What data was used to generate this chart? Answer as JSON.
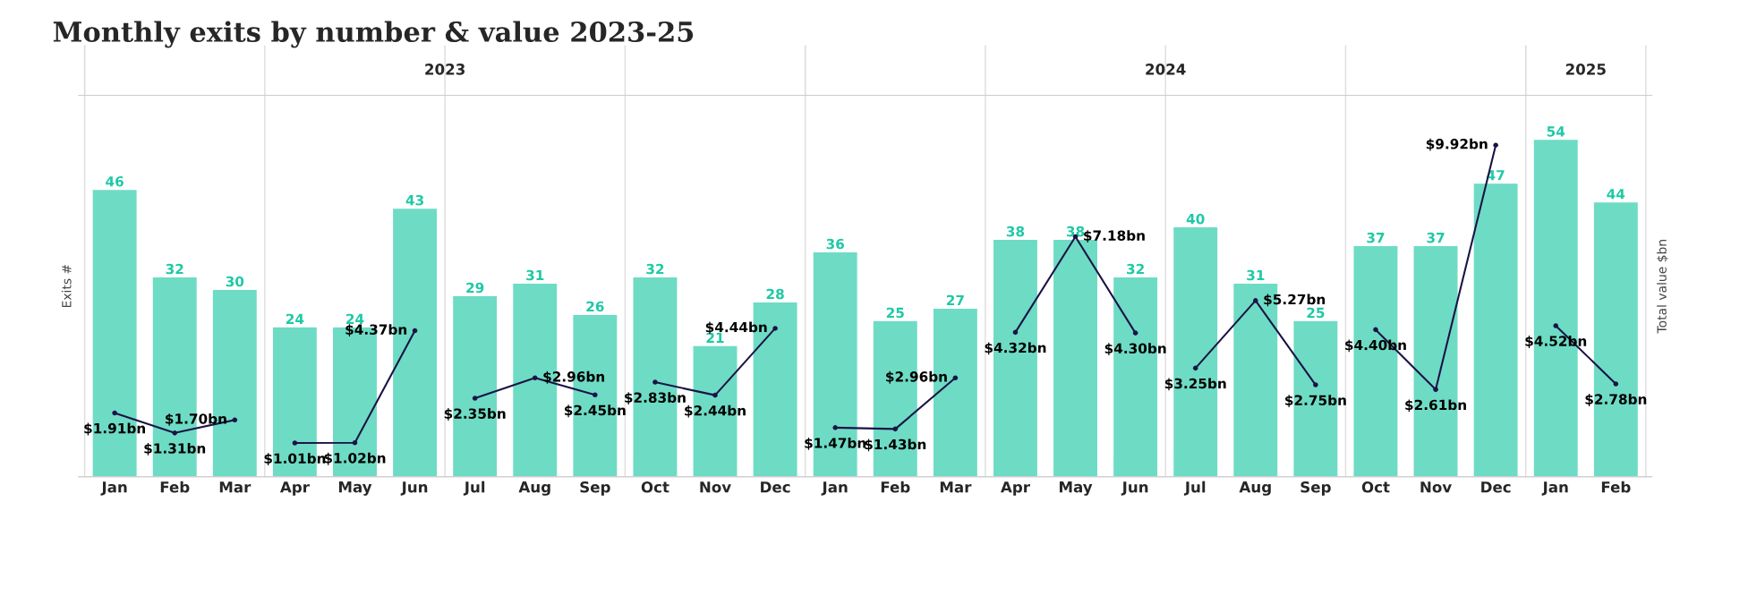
{
  "chart_data": {
    "type": "bar",
    "title": "Monthly exits by number & value 2023-25",
    "ylabel": "Exits #",
    "y2label": "Total value $bn",
    "annotations": [
      "2023",
      "2024",
      "2025"
    ],
    "categories": [
      "Jan",
      "Feb",
      "Mar",
      "Apr",
      "May",
      "Jun",
      "Jul",
      "Aug",
      "Sep",
      "Oct",
      "Nov",
      "Dec",
      "Jan",
      "Feb",
      "Mar",
      "Apr",
      "May",
      "Jun",
      "Jul",
      "Aug",
      "Sep",
      "Oct",
      "Nov",
      "Dec",
      "Jan",
      "Feb"
    ],
    "data_labels": true,
    "marker": "circle",
    "series": [
      {
        "color": "#6edbc5",
        "values": [
          46,
          32,
          30,
          24,
          24,
          43,
          29,
          31,
          26,
          32,
          21,
          28,
          36,
          25,
          27,
          38,
          38,
          32,
          40,
          31,
          25,
          37,
          37,
          47,
          54,
          44
        ]
      },
      {
        "type": "line",
        "axis": "y2",
        "color": "#1a1446",
        "values": [
          1.91,
          1.31,
          1.7,
          null,
          null,
          null,
          null,
          null,
          null,
          null,
          null,
          null,
          null,
          null,
          null,
          null,
          null,
          null,
          null,
          null,
          null,
          null,
          null,
          null,
          null,
          null
        ],
        "value_labels": [
          "$1.91bn",
          "$1.31bn",
          "$1.70bn",
          null,
          null,
          null,
          null,
          null,
          null,
          null,
          null,
          null,
          null,
          null,
          null,
          null,
          null,
          null,
          null,
          null,
          null,
          null,
          null,
          null,
          null,
          null
        ]
      },
      {
        "type": "line",
        "axis": "y2",
        "color": "#1a1446",
        "values": [
          null,
          null,
          null,
          1.01,
          1.02,
          4.37,
          null,
          null,
          null,
          null,
          null,
          null,
          null,
          null,
          null,
          null,
          null,
          null,
          null,
          null,
          null,
          null,
          null,
          null,
          null,
          null
        ],
        "value_labels": [
          null,
          null,
          null,
          "$1.01bn",
          "$1.02bn",
          "$4.37bn",
          null,
          null,
          null,
          null,
          null,
          null,
          null,
          null,
          null,
          null,
          null,
          null,
          null,
          null,
          null,
          null,
          null,
          null,
          null,
          null
        ]
      },
      {
        "type": "line",
        "axis": "y2",
        "color": "#1a1446",
        "values": [
          null,
          null,
          null,
          null,
          null,
          null,
          2.35,
          2.96,
          2.45,
          null,
          null,
          null,
          null,
          null,
          null,
          null,
          null,
          null,
          null,
          null,
          null,
          null,
          null,
          null,
          null,
          null
        ],
        "value_labels": [
          null,
          null,
          null,
          null,
          null,
          null,
          "$2.35bn",
          "$2.96bn",
          "$2.45bn",
          null,
          null,
          null,
          null,
          null,
          null,
          null,
          null,
          null,
          null,
          null,
          null,
          null,
          null,
          null,
          null,
          null
        ]
      },
      {
        "type": "line",
        "axis": "y2",
        "color": "#1a1446",
        "values": [
          null,
          null,
          null,
          null,
          null,
          null,
          null,
          null,
          null,
          2.83,
          2.44,
          4.44,
          null,
          null,
          null,
          null,
          null,
          null,
          null,
          null,
          null,
          null,
          null,
          null,
          null,
          null
        ],
        "value_labels": [
          null,
          null,
          null,
          null,
          null,
          null,
          null,
          null,
          null,
          "$2.83bn",
          "$2.44bn",
          "$4.44bn",
          null,
          null,
          null,
          null,
          null,
          null,
          null,
          null,
          null,
          null,
          null,
          null,
          null,
          null
        ]
      },
      {
        "type": "line",
        "axis": "y2",
        "color": "#1a1446",
        "values": [
          null,
          null,
          null,
          null,
          null,
          null,
          null,
          null,
          null,
          null,
          null,
          null,
          1.47,
          1.43,
          2.96,
          null,
          null,
          null,
          null,
          null,
          null,
          null,
          null,
          null,
          null,
          null
        ],
        "value_labels": [
          null,
          null,
          null,
          null,
          null,
          null,
          null,
          null,
          null,
          null,
          null,
          null,
          "$1.47bn",
          "$1.43bn",
          "$2.96bn",
          null,
          null,
          null,
          null,
          null,
          null,
          null,
          null,
          null,
          null,
          null
        ]
      },
      {
        "type": "line",
        "axis": "y2",
        "color": "#1a1446",
        "values": [
          null,
          null,
          null,
          null,
          null,
          null,
          null,
          null,
          null,
          null,
          null,
          null,
          null,
          null,
          null,
          4.32,
          7.18,
          4.3,
          null,
          null,
          null,
          null,
          null,
          null,
          null,
          null
        ],
        "value_labels": [
          null,
          null,
          null,
          null,
          null,
          null,
          null,
          null,
          null,
          null,
          null,
          null,
          null,
          null,
          null,
          "$4.32bn",
          "$7.18bn",
          "$4.30bn",
          null,
          null,
          null,
          null,
          null,
          null,
          null,
          null
        ]
      },
      {
        "type": "line",
        "axis": "y2",
        "color": "#1a1446",
        "values": [
          null,
          null,
          null,
          null,
          null,
          null,
          null,
          null,
          null,
          null,
          null,
          null,
          null,
          null,
          null,
          null,
          null,
          null,
          3.25,
          5.27,
          2.75,
          null,
          null,
          null,
          null,
          null
        ],
        "value_labels": [
          null,
          null,
          null,
          null,
          null,
          null,
          null,
          null,
          null,
          null,
          null,
          null,
          null,
          null,
          null,
          null,
          null,
          null,
          "$3.25bn",
          "$5.27bn",
          "$2.75bn",
          null,
          null,
          null,
          null,
          null
        ]
      },
      {
        "type": "line",
        "axis": "y2",
        "color": "#1a1446",
        "values": [
          null,
          null,
          null,
          null,
          null,
          null,
          null,
          null,
          null,
          null,
          null,
          null,
          null,
          null,
          null,
          null,
          null,
          null,
          null,
          null,
          null,
          4.4,
          2.61,
          9.92,
          null,
          null
        ],
        "value_labels": [
          null,
          null,
          null,
          null,
          null,
          null,
          null,
          null,
          null,
          null,
          null,
          null,
          null,
          null,
          null,
          null,
          null,
          null,
          null,
          null,
          null,
          "$4.40bn",
          "$2.61bn",
          "$9.92bn",
          null,
          null
        ]
      },
      {
        "type": "line",
        "axis": "y2",
        "color": "#1a1446",
        "values": [
          null,
          null,
          null,
          null,
          null,
          null,
          null,
          null,
          null,
          null,
          null,
          null,
          null,
          null,
          null,
          null,
          null,
          null,
          null,
          null,
          null,
          null,
          null,
          null,
          4.52,
          2.78
        ],
        "value_labels": [
          null,
          null,
          null,
          null,
          null,
          null,
          null,
          null,
          null,
          null,
          null,
          null,
          null,
          null,
          null,
          null,
          null,
          null,
          null,
          null,
          null,
          null,
          null,
          null,
          "$4.52bn",
          "$2.78bn"
        ]
      }
    ]
  }
}
